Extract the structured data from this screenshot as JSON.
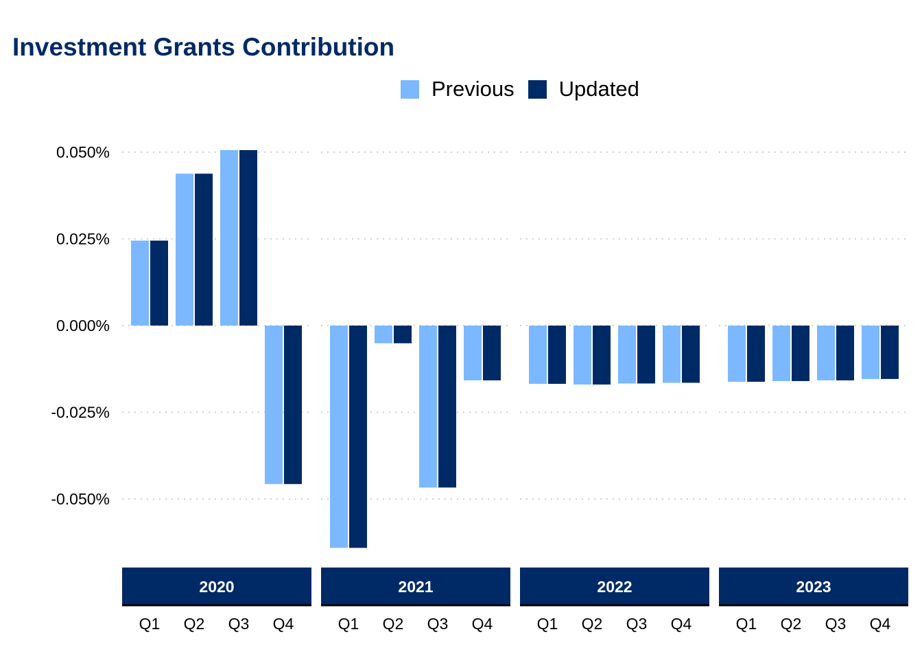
{
  "chart_data": {
    "type": "bar",
    "title": "Investment Grants Contribution",
    "xlabel": "",
    "ylabel": "",
    "ylim": [
      -0.064,
      0.053
    ],
    "yticks": [
      0.05,
      0.025,
      0.0,
      -0.025,
      -0.05
    ],
    "ytick_labels": [
      "0.050%",
      "0.025%",
      "0.000%",
      "-0.025%",
      "-0.050%"
    ],
    "grid": true,
    "legend_position": "top",
    "colors": {
      "Previous": "#7cb8ff",
      "Updated": "#002a66",
      "facet_strip": "#002a66",
      "title": "#002a66"
    },
    "panels": [
      {
        "label": "2020",
        "categories": [
          "Q1",
          "Q2",
          "Q3",
          "Q4"
        ],
        "series": [
          {
            "name": "Previous",
            "values": [
              0.0245,
              0.0438,
              0.0506,
              -0.0457
            ]
          },
          {
            "name": "Updated",
            "values": [
              0.0245,
              0.0438,
              0.0506,
              -0.0457
            ]
          }
        ]
      },
      {
        "label": "2021",
        "categories": [
          "Q1",
          "Q2",
          "Q3",
          "Q4"
        ],
        "series": [
          {
            "name": "Previous",
            "values": [
              -0.0641,
              -0.0051,
              -0.0467,
              -0.0158
            ]
          },
          {
            "name": "Updated",
            "values": [
              -0.0641,
              -0.0051,
              -0.0467,
              -0.0158
            ]
          }
        ]
      },
      {
        "label": "2022",
        "categories": [
          "Q1",
          "Q2",
          "Q3",
          "Q4"
        ],
        "series": [
          {
            "name": "Previous",
            "values": [
              -0.0168,
              -0.017,
              -0.0167,
              -0.0165
            ]
          },
          {
            "name": "Updated",
            "values": [
              -0.0168,
              -0.017,
              -0.0167,
              -0.0165
            ]
          }
        ]
      },
      {
        "label": "2023",
        "categories": [
          "Q1",
          "Q2",
          "Q3",
          "Q4"
        ],
        "series": [
          {
            "name": "Previous",
            "values": [
              -0.0162,
              -0.016,
              -0.0158,
              -0.0154
            ]
          },
          {
            "name": "Updated",
            "values": [
              -0.0162,
              -0.016,
              -0.0158,
              -0.0154
            ]
          }
        ]
      }
    ]
  },
  "legend": {
    "previous_label": "Previous",
    "updated_label": "Updated"
  }
}
